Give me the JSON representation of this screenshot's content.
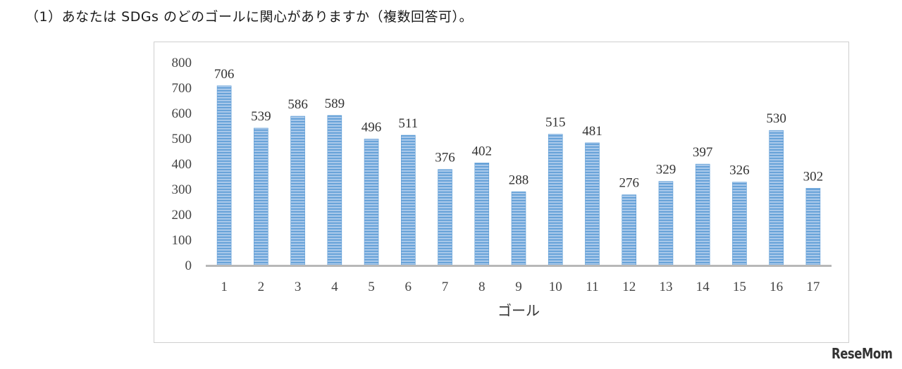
{
  "question": "（1）あなたは SDGs のどのゴールに関心がありますか（複数回答可）。",
  "logo": "ReseMom",
  "colors": {
    "bar": "#a8c8ea",
    "bar_stripe": "#5b9bd5",
    "axis": "#b8b8b8"
  },
  "chart_data": {
    "type": "bar",
    "title": "",
    "xlabel": "ゴール",
    "ylabel": "",
    "categories": [
      "1",
      "2",
      "3",
      "4",
      "5",
      "6",
      "7",
      "8",
      "9",
      "10",
      "11",
      "12",
      "13",
      "14",
      "15",
      "16",
      "17"
    ],
    "values": [
      706,
      539,
      586,
      589,
      496,
      511,
      376,
      402,
      288,
      515,
      481,
      276,
      329,
      397,
      326,
      530,
      302
    ],
    "ylim": [
      0,
      800
    ],
    "yticks": [
      0,
      100,
      200,
      300,
      400,
      500,
      600,
      700,
      800
    ],
    "grid": false,
    "legend": "none",
    "data_labels": true
  }
}
